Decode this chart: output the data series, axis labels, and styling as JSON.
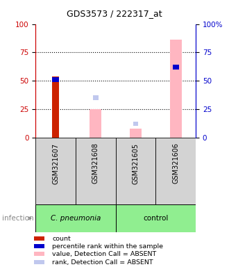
{
  "title": "GDS3573 / 222317_at",
  "samples": [
    "GSM321607",
    "GSM321608",
    "GSM321605",
    "GSM321606"
  ],
  "groups": [
    "C. pneumonia",
    "C. pneumonia",
    "control",
    "control"
  ],
  "count_values": [
    54,
    null,
    null,
    null
  ],
  "percentile_values": [
    51,
    null,
    null,
    62
  ],
  "absent_value_values": [
    null,
    25,
    8,
    86
  ],
  "absent_rank_values": [
    null,
    35,
    12,
    null
  ],
  "ylim": [
    0,
    100
  ],
  "yticks": [
    0,
    25,
    50,
    75,
    100
  ],
  "grid_lines": [
    25,
    50,
    75
  ],
  "left_axis_color": "#CC0000",
  "right_axis_color": "#0000CC",
  "count_color": "#CC2200",
  "percentile_color": "#0000CC",
  "absent_value_color": "#FFB6C1",
  "absent_rank_color": "#C0C8EE",
  "sample_label_color": "#D3D3D3",
  "group_cpneumonia_color": "#90EE90",
  "group_control_color": "#90EE90",
  "infection_label": "infection",
  "legend_items": [
    {
      "label": "count",
      "color": "#CC2200"
    },
    {
      "label": "percentile rank within the sample",
      "color": "#0000CC"
    },
    {
      "label": "value, Detection Call = ABSENT",
      "color": "#FFB6C1"
    },
    {
      "label": "rank, Detection Call = ABSENT",
      "color": "#C0C8EE"
    }
  ]
}
